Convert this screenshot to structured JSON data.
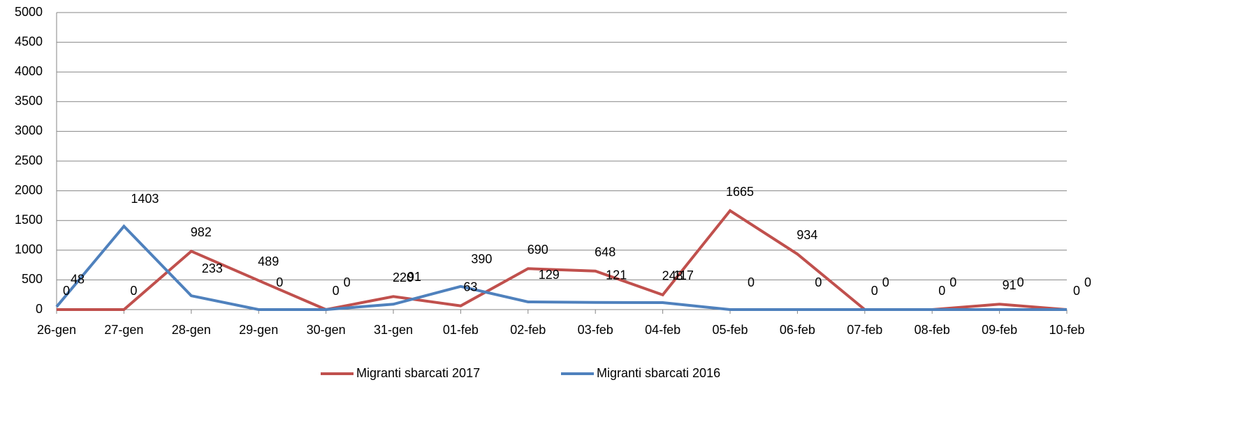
{
  "chart_data": {
    "type": "line",
    "categories": [
      "26-gen",
      "27-gen",
      "28-gen",
      "29-gen",
      "30-gen",
      "31-gen",
      "01-feb",
      "02-feb",
      "03-feb",
      "04-feb",
      "05-feb",
      "06-feb",
      "07-feb",
      "08-feb",
      "09-feb",
      "10-feb"
    ],
    "series": [
      {
        "name": "Migranti sbarcati 2017",
        "color": "#c0504d",
        "values": [
          0,
          0,
          982,
          489,
          0,
          220,
          63,
          690,
          648,
          248,
          1665,
          934,
          0,
          0,
          91,
          0
        ]
      },
      {
        "name": "Migranti sbarcati 2016",
        "color": "#4f81bd",
        "values": [
          48,
          1403,
          233,
          0,
          0,
          91,
          390,
          129,
          121,
          117,
          0,
          0,
          0,
          0,
          0,
          0
        ]
      }
    ],
    "ylim": [
      0,
      5000
    ],
    "yticks": [
      0,
      500,
      1000,
      1500,
      2000,
      2500,
      3000,
      3500,
      4000,
      4500,
      5000
    ],
    "grid": true,
    "legend": "bottom"
  }
}
